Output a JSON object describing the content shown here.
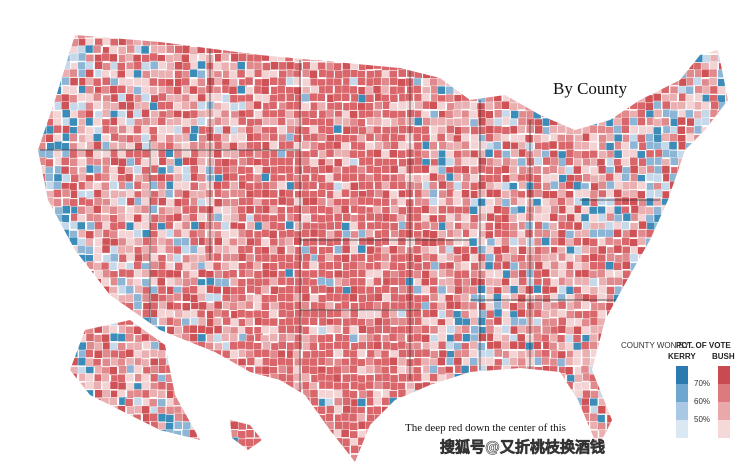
{
  "map": {
    "title": "By County",
    "legend": {
      "heading_left": "COUNTY WON BY...",
      "heading_right": "PCT. OF VOTE",
      "kerry": "KERRY",
      "bush": "BUSH",
      "levels": [
        "70%",
        "60%",
        "50%"
      ]
    },
    "caption": "The deep red down the center of this",
    "watermark": "搜狐号@又折桃枝换酒钱"
  }
}
